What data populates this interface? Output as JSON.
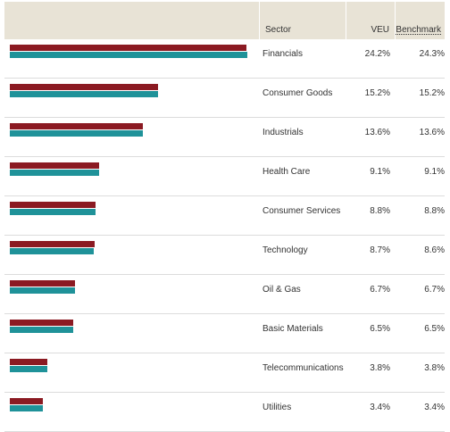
{
  "header": {
    "sector": "Sector",
    "veu": "VEU",
    "benchmark": "Benchmark"
  },
  "colors": {
    "veu": "#8b1a22",
    "benchmark": "#1f9299",
    "header_bg": "#e8e3d6"
  },
  "chart_data": {
    "type": "bar",
    "orientation": "horizontal",
    "categories": [
      "Financials",
      "Consumer Goods",
      "Industrials",
      "Health Care",
      "Consumer Services",
      "Technology",
      "Oil & Gas",
      "Basic Materials",
      "Telecommunications",
      "Utilities"
    ],
    "series": [
      {
        "name": "VEU",
        "values": [
          24.2,
          15.2,
          13.6,
          9.1,
          8.8,
          8.7,
          6.7,
          6.5,
          3.8,
          3.4
        ]
      },
      {
        "name": "Benchmark",
        "values": [
          24.3,
          15.2,
          13.6,
          9.1,
          8.8,
          8.6,
          6.7,
          6.5,
          3.8,
          3.4
        ]
      }
    ],
    "xlim": [
      0,
      24.3
    ],
    "grid": false,
    "legend": "none"
  },
  "rows": [
    {
      "sector": "Financials",
      "veu": "24.2%",
      "benchmark": "24.3%"
    },
    {
      "sector": "Consumer Goods",
      "veu": "15.2%",
      "benchmark": "15.2%"
    },
    {
      "sector": "Industrials",
      "veu": "13.6%",
      "benchmark": "13.6%"
    },
    {
      "sector": "Health Care",
      "veu": "9.1%",
      "benchmark": "9.1%"
    },
    {
      "sector": "Consumer Services",
      "veu": "8.8%",
      "benchmark": "8.8%"
    },
    {
      "sector": "Technology",
      "veu": "8.7%",
      "benchmark": "8.6%"
    },
    {
      "sector": "Oil & Gas",
      "veu": "6.7%",
      "benchmark": "6.7%"
    },
    {
      "sector": "Basic Materials",
      "veu": "6.5%",
      "benchmark": "6.5%"
    },
    {
      "sector": "Telecommunications",
      "veu": "3.8%",
      "benchmark": "3.8%"
    },
    {
      "sector": "Utilities",
      "veu": "3.4%",
      "benchmark": "3.4%"
    }
  ]
}
